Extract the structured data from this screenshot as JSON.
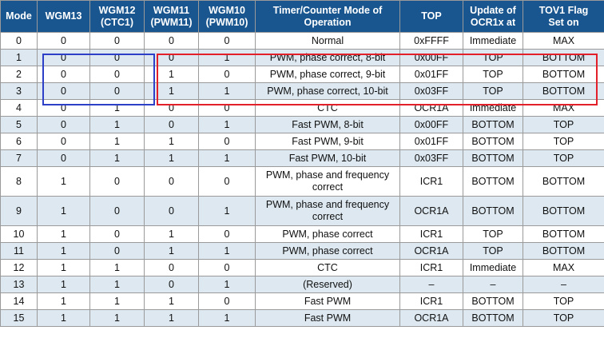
{
  "table": {
    "headers": [
      [
        "Mode"
      ],
      [
        "WGM13"
      ],
      [
        "WGM12",
        "(CTC1)"
      ],
      [
        "WGM11",
        "(PWM11)"
      ],
      [
        "WGM10",
        "(PWM10)"
      ],
      [
        "Timer/Counter Mode of",
        "Operation"
      ],
      [
        "TOP"
      ],
      [
        "Update of",
        "OCR1x at"
      ],
      [
        "TOV1 Flag",
        "Set on"
      ]
    ],
    "rows": [
      [
        "0",
        "0",
        "0",
        "0",
        "0",
        "Normal",
        "0xFFFF",
        "Immediate",
        "MAX"
      ],
      [
        "1",
        "0",
        "0",
        "0",
        "1",
        "PWM, phase correct, 8-bit",
        "0x00FF",
        "TOP",
        "BOTTOM"
      ],
      [
        "2",
        "0",
        "0",
        "1",
        "0",
        "PWM, phase correct, 9-bit",
        "0x01FF",
        "TOP",
        "BOTTOM"
      ],
      [
        "3",
        "0",
        "0",
        "1",
        "1",
        "PWM, phase correct, 10-bit",
        "0x03FF",
        "TOP",
        "BOTTOM"
      ],
      [
        "4",
        "0",
        "1",
        "0",
        "0",
        "CTC",
        "OCR1A",
        "Immediate",
        "MAX"
      ],
      [
        "5",
        "0",
        "1",
        "0",
        "1",
        "Fast PWM, 8-bit",
        "0x00FF",
        "BOTTOM",
        "TOP"
      ],
      [
        "6",
        "0",
        "1",
        "1",
        "0",
        "Fast PWM, 9-bit",
        "0x01FF",
        "BOTTOM",
        "TOP"
      ],
      [
        "7",
        "0",
        "1",
        "1",
        "1",
        "Fast PWM, 10-bit",
        "0x03FF",
        "BOTTOM",
        "TOP"
      ],
      [
        "8",
        "1",
        "0",
        "0",
        "0",
        "PWM, phase and frequency correct",
        "ICR1",
        "BOTTOM",
        "BOTTOM"
      ],
      [
        "9",
        "1",
        "0",
        "0",
        "1",
        "PWM, phase and frequency correct",
        "OCR1A",
        "BOTTOM",
        "BOTTOM"
      ],
      [
        "10",
        "1",
        "0",
        "1",
        "0",
        "PWM, phase correct",
        "ICR1",
        "TOP",
        "BOTTOM"
      ],
      [
        "11",
        "1",
        "0",
        "1",
        "1",
        "PWM, phase correct",
        "OCR1A",
        "TOP",
        "BOTTOM"
      ],
      [
        "12",
        "1",
        "1",
        "0",
        "0",
        "CTC",
        "ICR1",
        "Immediate",
        "MAX"
      ],
      [
        "13",
        "1",
        "1",
        "0",
        "1",
        "(Reserved)",
        "–",
        "–",
        "–"
      ],
      [
        "14",
        "1",
        "1",
        "1",
        "0",
        "Fast PWM",
        "ICR1",
        "BOTTOM",
        "TOP"
      ],
      [
        "15",
        "1",
        "1",
        "1",
        "1",
        "Fast PWM",
        "OCR1A",
        "BOTTOM",
        "TOP"
      ]
    ]
  },
  "colors": {
    "header_bg": "#19568f",
    "header_text": "#ffffff",
    "alt_row_bg": "#dde8f0",
    "highlight_blue": "#2d3fc7",
    "highlight_red": "#e3202a"
  }
}
